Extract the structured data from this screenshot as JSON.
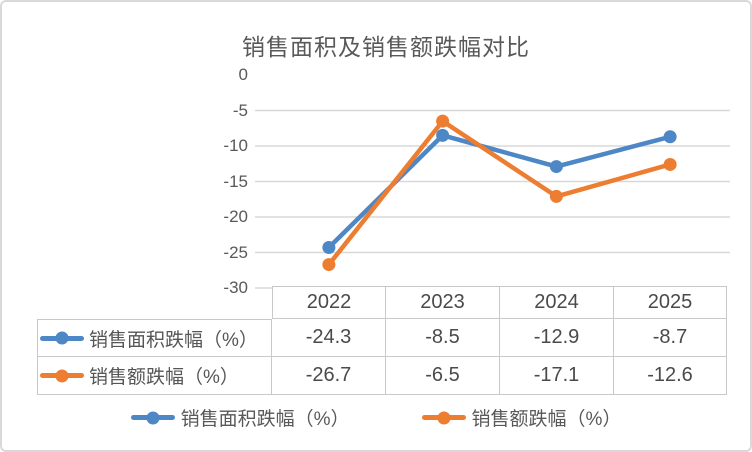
{
  "chart_data": {
    "type": "line",
    "title": "销售面积及销售额跌幅对比",
    "categories": [
      "2022",
      "2023",
      "2024",
      "2025"
    ],
    "series": [
      {
        "name": "销售面积跌幅（%）",
        "values": [
          -24.3,
          -8.5,
          -12.9,
          -8.7
        ],
        "color": "#4E87C5"
      },
      {
        "name": "销售额跌幅（%）",
        "values": [
          -26.7,
          -6.5,
          -17.1,
          -12.6
        ],
        "color": "#ED7D31"
      }
    ],
    "xlabel": "",
    "ylabel": "",
    "ylim": [
      -30,
      0
    ],
    "ytick_interval": 5,
    "yticks": [
      "0",
      "-5",
      "-10",
      "-15",
      "-20",
      "-25",
      "-30"
    ],
    "grid": true,
    "gridline_color": "#d8d8d8",
    "axis_text_color": "#595959",
    "legend_position": "bottom",
    "marker": "circle"
  },
  "table": {
    "col_headers": [
      "2022",
      "2023",
      "2024",
      "2025"
    ],
    "rows": [
      {
        "label": "销售面积跌幅（%）",
        "values": [
          "-24.3",
          "-8.5",
          "-12.9",
          "-8.7"
        ]
      },
      {
        "label": "销售额跌幅（%）",
        "values": [
          "-26.7",
          "-6.5",
          "-17.1",
          "-12.6"
        ]
      }
    ]
  },
  "legend": {
    "items": [
      {
        "label": "销售面积跌幅（%）"
      },
      {
        "label": "销售额跌幅（%）"
      }
    ]
  }
}
